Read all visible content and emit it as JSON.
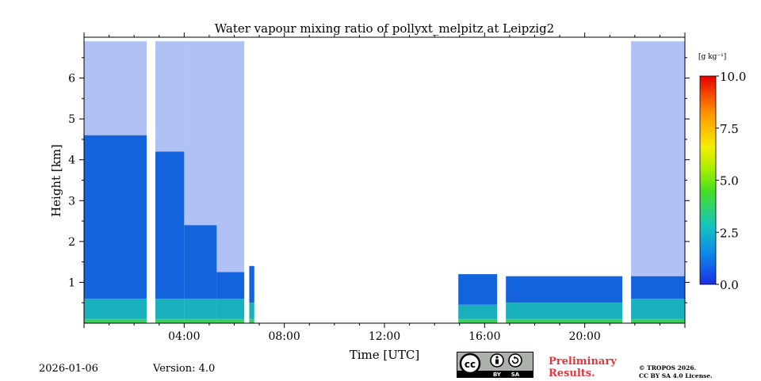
{
  "chart_data": {
    "type": "heatmap",
    "title": "Water vapour mixing ratio of pollyxt_melpitz at Leipzig2",
    "xlabel": "Time [UTC]",
    "ylabel": "Height [km]",
    "xlim_hours": [
      0,
      24
    ],
    "ylim_km": [
      0,
      7
    ],
    "x_ticks": [
      {
        "value": 4,
        "label": "04:00"
      },
      {
        "value": 8,
        "label": "08:00"
      },
      {
        "value": 12,
        "label": "12:00"
      },
      {
        "value": 16,
        "label": "16:00"
      },
      {
        "value": 20,
        "label": "20:00"
      }
    ],
    "y_ticks": [
      {
        "value": 1,
        "label": "1"
      },
      {
        "value": 2,
        "label": "2"
      },
      {
        "value": 3,
        "label": "3"
      },
      {
        "value": 4,
        "label": "4"
      },
      {
        "value": 5,
        "label": "5"
      },
      {
        "value": 6,
        "label": "6"
      }
    ],
    "colorbar": {
      "unit_label": "[g kg⁻¹]",
      "range": [
        0,
        10
      ],
      "ticks": [
        {
          "value": 0,
          "label": "0.0"
        },
        {
          "value": 2.5,
          "label": "2.5"
        },
        {
          "value": 5,
          "label": "5.0"
        },
        {
          "value": 7.5,
          "label": "7.5"
        },
        {
          "value": 10,
          "label": "10.0"
        }
      ],
      "colors": [
        "#1a33e6",
        "#0d99e6",
        "#2ecc8f",
        "#4fe000",
        "#f4f000",
        "#ff8c00",
        "#e60000"
      ]
    },
    "data_blocks": [
      {
        "t_start": 0.0,
        "t_end": 2.5,
        "top_km": 6.9,
        "dense_top_km": 4.6,
        "boundary_km": 0.6
      },
      {
        "t_start": 2.85,
        "t_end": 4.0,
        "top_km": 6.9,
        "dense_top_km": 4.2,
        "boundary_km": 0.6
      },
      {
        "t_start": 4.0,
        "t_end": 5.3,
        "top_km": 6.9,
        "dense_top_km": 2.4,
        "boundary_km": 0.6
      },
      {
        "t_start": 5.3,
        "t_end": 6.4,
        "top_km": 6.9,
        "dense_top_km": 1.25,
        "boundary_km": 0.6
      },
      {
        "t_start": 6.6,
        "t_end": 6.8,
        "top_km": 1.4,
        "dense_top_km": 1.4,
        "boundary_km": 0.5
      },
      {
        "t_start": 14.95,
        "t_end": 16.5,
        "top_km": 1.2,
        "dense_top_km": 1.2,
        "boundary_km": 0.45
      },
      {
        "t_start": 16.85,
        "t_end": 21.5,
        "top_km": 1.15,
        "dense_top_km": 1.15,
        "boundary_km": 0.5
      },
      {
        "t_start": 21.85,
        "t_end": 24.0,
        "top_km": 6.9,
        "dense_top_km": 1.15,
        "boundary_km": 0.6
      }
    ]
  },
  "footer": {
    "date": "2026-01-06",
    "version": "Version: 4.0",
    "preliminary_line1": "Preliminary",
    "preliminary_line2": "Results.",
    "copyright_line1": "© TROPOS 2026.",
    "copyright_line2": "CC BY SA 4.0 License.",
    "badge_by": "BY",
    "badge_sa": "SA",
    "badge_cc": "cc"
  }
}
